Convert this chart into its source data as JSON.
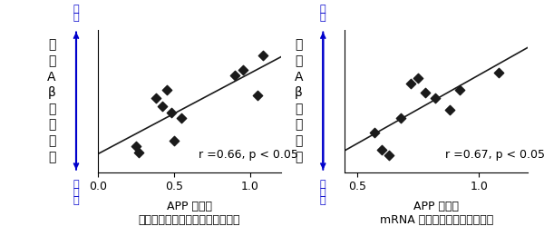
{
  "plot1": {
    "x": [
      0.25,
      0.27,
      0.38,
      0.42,
      0.45,
      0.48,
      0.5,
      0.55,
      0.9,
      0.95,
      1.05,
      1.08
    ],
    "y": [
      0.18,
      0.14,
      0.52,
      0.46,
      0.58,
      0.42,
      0.22,
      0.38,
      0.68,
      0.72,
      0.54,
      0.82
    ],
    "xlim": [
      0,
      1.2
    ],
    "ylim": [
      0,
      1.0
    ],
    "xticks": [
      0,
      0.5,
      1.0
    ],
    "annotation": "r =0.66, p < 0.05",
    "xlabel_line1": "APP 発現量",
    "xlabel_line2": "タンパクレベル（翻訳後の発現）"
  },
  "plot2": {
    "x": [
      0.57,
      0.6,
      0.63,
      0.68,
      0.72,
      0.75,
      0.78,
      0.82,
      0.88,
      0.92,
      1.08
    ],
    "y": [
      0.28,
      0.16,
      0.12,
      0.38,
      0.62,
      0.66,
      0.56,
      0.52,
      0.44,
      0.58,
      0.7
    ],
    "xlim": [
      0.45,
      1.2
    ],
    "ylim": [
      0,
      1.0
    ],
    "xticks": [
      0.5,
      1.0
    ],
    "annotation": "r =0.67, p < 0.05",
    "xlabel_line1": "APP 発現量",
    "xlabel_line2": "mRNA レベル（転写後の発現）"
  },
  "ylabel_text": [
    "脳",
    "内",
    "A",
    "β",
    "の",
    "蓄",
    "積",
    "量"
  ],
  "arrow_color": "#0000cc",
  "dot_color": "#1a1a1a",
  "line_color": "#1a1a1a",
  "font_size_annotation": 9,
  "font_size_axis": 9,
  "font_size_ylabel_chars": 10,
  "font_size_label": 9
}
